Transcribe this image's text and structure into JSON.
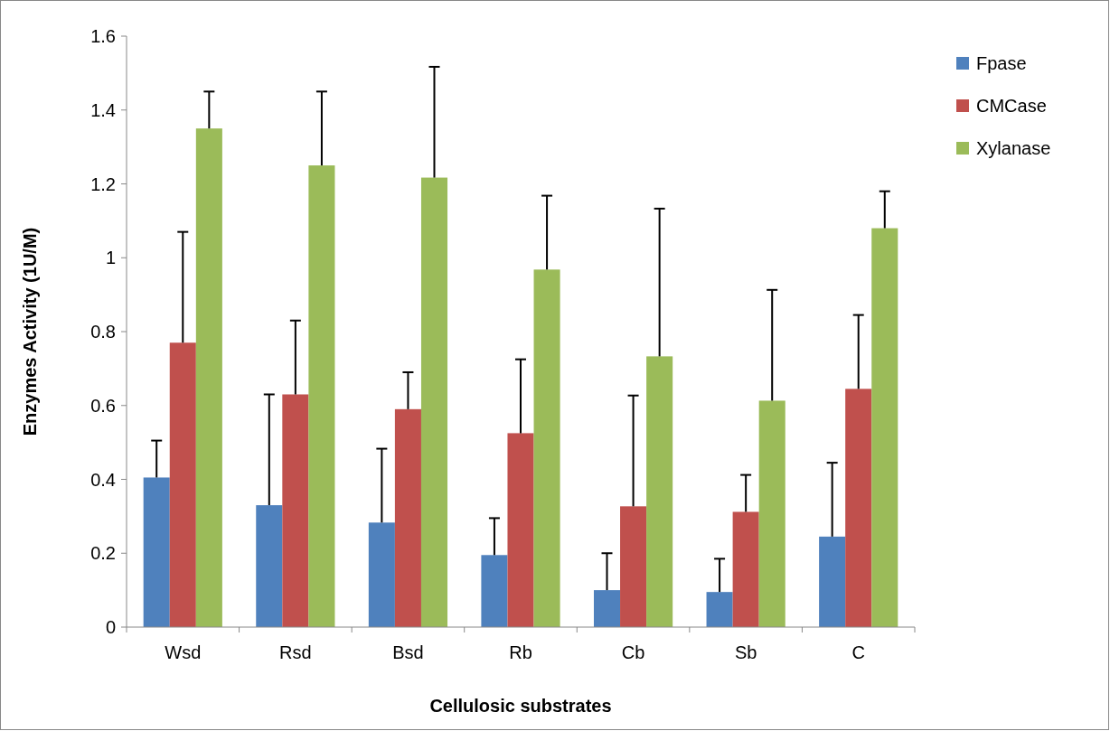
{
  "chart_data": {
    "type": "bar",
    "xlabel": "Cellulosic substrates",
    "ylabel": "Enzymes Activity (1U/M)",
    "categories": [
      "Wsd",
      "Rsd",
      "Bsd",
      "Rb",
      "Cb",
      "Sb",
      "C"
    ],
    "series": [
      {
        "name": "Fpase",
        "color": "#4f81bd",
        "values": [
          0.405,
          0.33,
          0.283,
          0.195,
          0.1,
          0.095,
          0.245
        ],
        "errors": [
          [
            0.405,
            0.505
          ],
          [
            0.33,
            0.63
          ],
          [
            0.283,
            0.483
          ],
          [
            0.195,
            0.295
          ],
          [
            0.1,
            0.2
          ],
          [
            0.095,
            0.185
          ],
          [
            0.245,
            0.445
          ]
        ]
      },
      {
        "name": "CMCase",
        "color": "#c0504d",
        "values": [
          0.77,
          0.63,
          0.59,
          0.525,
          0.327,
          0.312,
          0.645
        ],
        "errors": [
          [
            0.77,
            1.07
          ],
          [
            0.63,
            0.83
          ],
          [
            0.59,
            0.69
          ],
          [
            0.525,
            0.725
          ],
          [
            0.327,
            0.627
          ],
          [
            0.312,
            0.412
          ],
          [
            0.645,
            0.845
          ]
        ]
      },
      {
        "name": "Xylanase",
        "color": "#9bbb59",
        "values": [
          1.35,
          1.25,
          1.217,
          0.968,
          0.733,
          0.613,
          1.08
        ],
        "errors": [
          [
            1.35,
            1.45
          ],
          [
            1.25,
            1.45
          ],
          [
            1.217,
            1.517
          ],
          [
            0.968,
            1.168
          ],
          [
            0.733,
            1.133
          ],
          [
            0.613,
            0.913
          ],
          [
            1.08,
            1.18
          ]
        ]
      }
    ],
    "ylim": [
      0,
      1.6
    ],
    "yticks": [
      0,
      0.2,
      0.4,
      0.6,
      0.8,
      1,
      1.2,
      1.4,
      1.6
    ],
    "grid": false,
    "legend": "right"
  }
}
